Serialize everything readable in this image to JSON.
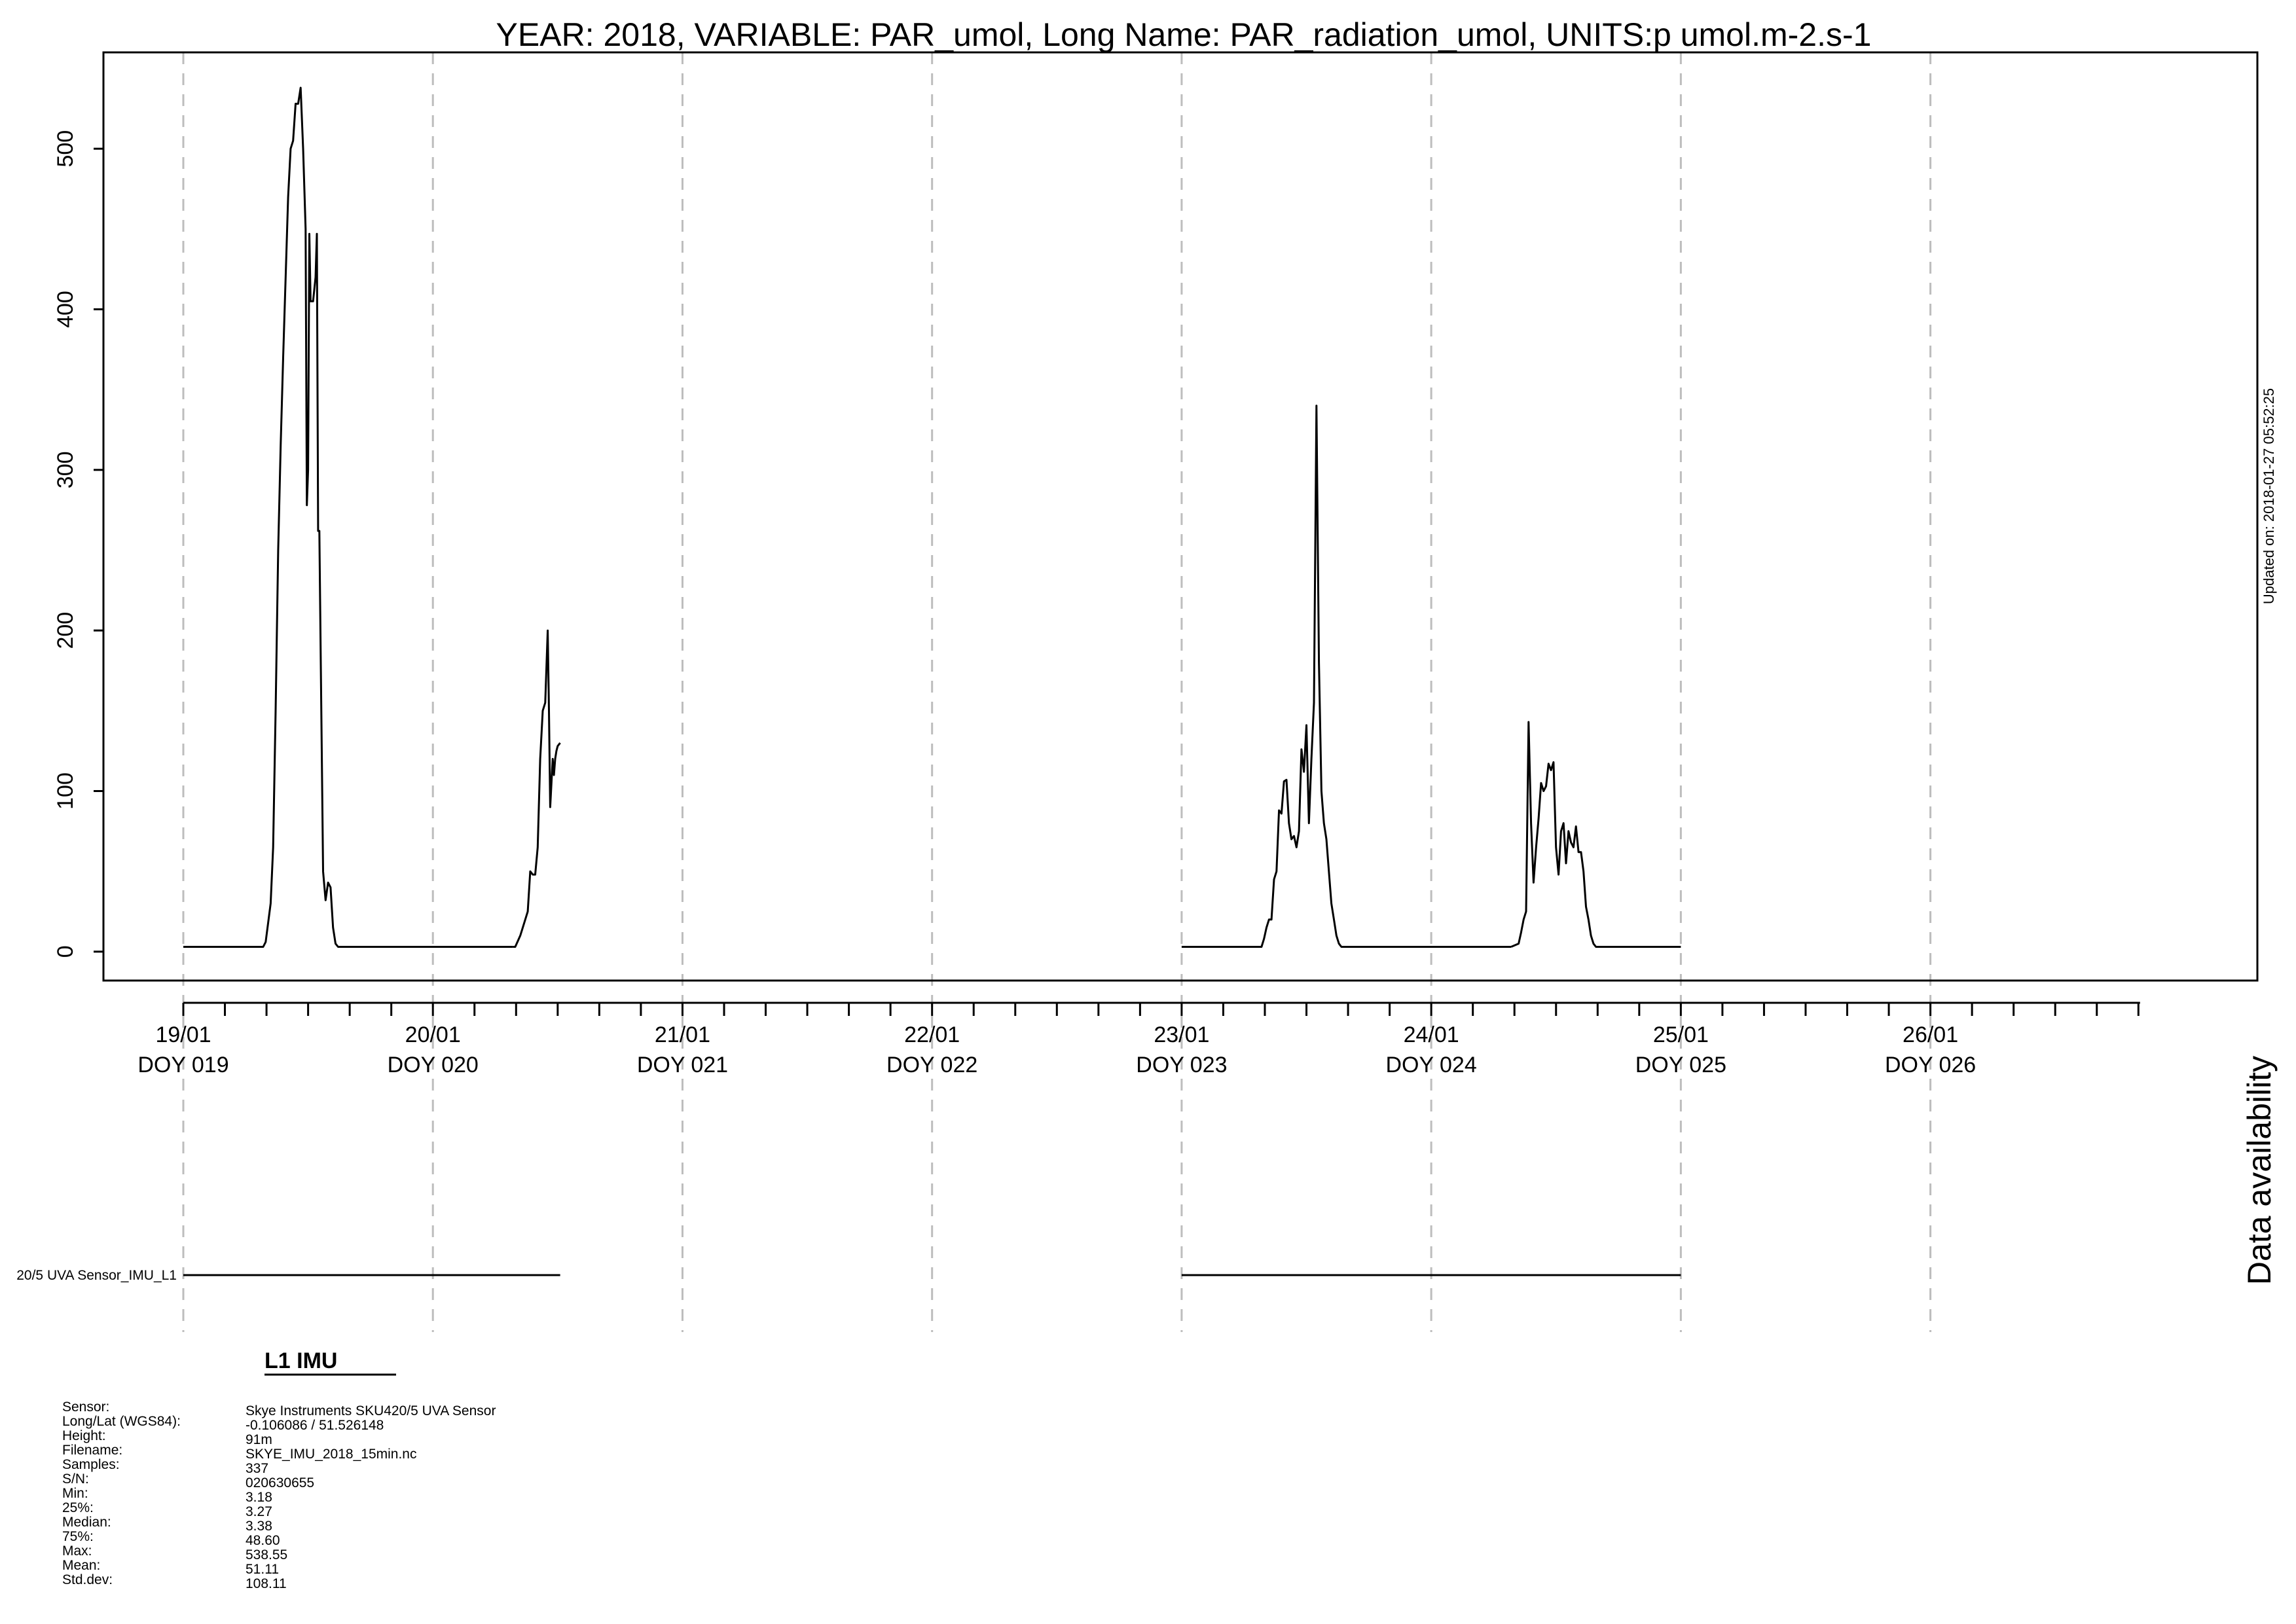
{
  "chart_data": {
    "type": "line",
    "title": "YEAR: 2018, VARIABLE: PAR_umol, Long Name: PAR_radiation_umol, UNITS:p umol.m-2.s-1",
    "xlabel": "",
    "ylabel": "",
    "ylim": [
      -18,
      560
    ],
    "xlim_doy": [
      18.68,
      27.31
    ],
    "y_ticks": [
      "0",
      "100",
      "200",
      "300",
      "400",
      "500"
    ],
    "x_ticks": [
      {
        "date": "19/01",
        "doy": "DOY 019"
      },
      {
        "date": "20/01",
        "doy": "DOY 020"
      },
      {
        "date": "21/01",
        "doy": "DOY 021"
      },
      {
        "date": "22/01",
        "doy": "DOY 022"
      },
      {
        "date": "23/01",
        "doy": "DOY 023"
      },
      {
        "date": "24/01",
        "doy": "DOY 024"
      },
      {
        "date": "25/01",
        "doy": "DOY 025"
      },
      {
        "date": "26/01",
        "doy": "DOY 026"
      }
    ],
    "grid": "dashed vertical lines at day boundaries",
    "line_color": "#000000",
    "series": [
      {
        "name": "",
        "segments": [
          {
            "x_doy": [
              19.0,
              19.32,
              19.33,
              19.35,
              19.36,
              19.37,
              19.38,
              19.39,
              19.4,
              19.41,
              19.42,
              19.43,
              19.44,
              19.45,
              19.46,
              19.47,
              19.48,
              19.49,
              19.495,
              19.5,
              19.505,
              19.51,
              19.52,
              19.53,
              19.535,
              19.54,
              19.545,
              19.55,
              19.56,
              19.57,
              19.58,
              19.59,
              19.6,
              19.61,
              19.615,
              19.62,
              19.63,
              19.64,
              19.645,
              19.65,
              19.66,
              19.665,
              19.67,
              19.68,
              19.69,
              19.7,
              19.72,
              20.32
            ],
            "y": [
              3,
              3,
              6,
              30,
              65,
              150,
              250,
              315,
              370,
              420,
              470,
              500,
              505,
              528,
              528,
              538,
              500,
              450,
              278,
              300,
              447,
              405,
              405,
              420,
              447,
              262,
              262,
              190,
              50,
              32,
              43,
              40,
              15,
              5,
              4,
              3,
              3,
              3,
              3,
              3,
              3,
              3,
              3,
              3,
              3,
              3,
              3,
              3
            ]
          },
          {
            "x_doy": [
              20.32,
              20.33,
              20.35,
              20.37,
              20.38,
              20.39,
              20.4,
              20.41,
              20.42,
              20.43,
              20.44,
              20.45,
              20.46,
              20.465,
              20.47,
              20.48,
              20.485,
              20.49,
              20.495,
              20.5,
              20.51
            ],
            "y": [
              3,
              3,
              10,
              20,
              25,
              50,
              48,
              48,
              65,
              120,
              150,
              155,
              200,
              150,
              90,
              120,
              110,
              120,
              125,
              128,
              130
            ]
          },
          {
            "x_doy": [
              23.0,
              23.32,
              23.33,
              23.34,
              23.35,
              23.36,
              23.37,
              23.38,
              23.39,
              23.4,
              23.41,
              23.42,
              23.43,
              23.44,
              23.45,
              23.46,
              23.47,
              23.48,
              23.49,
              23.5,
              23.51,
              23.52,
              23.53,
              23.54,
              23.55,
              23.56,
              23.57,
              23.58,
              23.59,
              23.6,
              23.61,
              23.62,
              23.63,
              23.64,
              23.65,
              23.66,
              23.67,
              23.68,
              23.69,
              23.7,
              23.72,
              23.75,
              24.32
            ],
            "y": [
              3,
              3,
              8,
              15,
              20,
              20,
              45,
              50,
              88,
              86,
              106,
              107,
              80,
              70,
              72,
              65,
              75,
              126,
              112,
              141,
              80,
              120,
              155,
              340,
              180,
              100,
              80,
              70,
              50,
              30,
              20,
              10,
              5,
              3,
              3,
              3,
              3,
              3,
              3,
              3,
              3,
              3,
              3
            ]
          },
          {
            "x_doy": [
              24.32,
              24.35,
              24.36,
              24.37,
              24.38,
              24.39,
              24.4,
              24.41,
              24.42,
              24.43,
              24.44,
              24.45,
              24.46,
              24.47,
              24.48,
              24.49,
              24.5,
              24.51,
              24.52,
              24.53,
              24.54,
              24.55,
              24.56,
              24.57,
              24.58,
              24.59,
              24.6,
              24.61,
              24.62,
              24.63,
              24.64,
              24.65,
              24.66,
              24.67,
              24.68,
              24.69,
              24.7,
              24.72,
              24.75,
              25.0
            ],
            "y": [
              3,
              5,
              12,
              20,
              25,
              143,
              80,
              43,
              65,
              83,
              105,
              100,
              103,
              117,
              113,
              118,
              65,
              48,
              75,
              80,
              55,
              75,
              68,
              65,
              78,
              62,
              62,
              50,
              28,
              20,
              10,
              5,
              3,
              3,
              3,
              3,
              3,
              3,
              3,
              3
            ]
          }
        ]
      }
    ]
  },
  "side_label": "Updated on: 2018-01-27 05:52:25",
  "availability": {
    "heading": "Data availability",
    "row_label": "20/5 UVA Sensor_IMU_L1",
    "ranges_doy": [
      [
        19.0,
        20.51
      ],
      [
        23.0,
        25.0
      ]
    ]
  },
  "info": {
    "title": "L1 IMU",
    "labels": [
      "Sensor:",
      "Long/Lat (WGS84):",
      "Height:",
      "Filename:",
      "Samples:",
      "S/N:",
      "Min:",
      "25%:",
      "Median:",
      "75%:",
      "Max:",
      "Mean:",
      "Std.dev:"
    ],
    "values": [
      "Skye Instruments SKU420/5 UVA Sensor",
      "-0.106086 / 51.526148",
      "91m",
      "SKYE_IMU_2018_15min.nc",
      "337",
      "020630655",
      "3.18",
      "3.27",
      "3.38",
      "48.60",
      "538.55",
      "51.11",
      "108.11"
    ]
  }
}
